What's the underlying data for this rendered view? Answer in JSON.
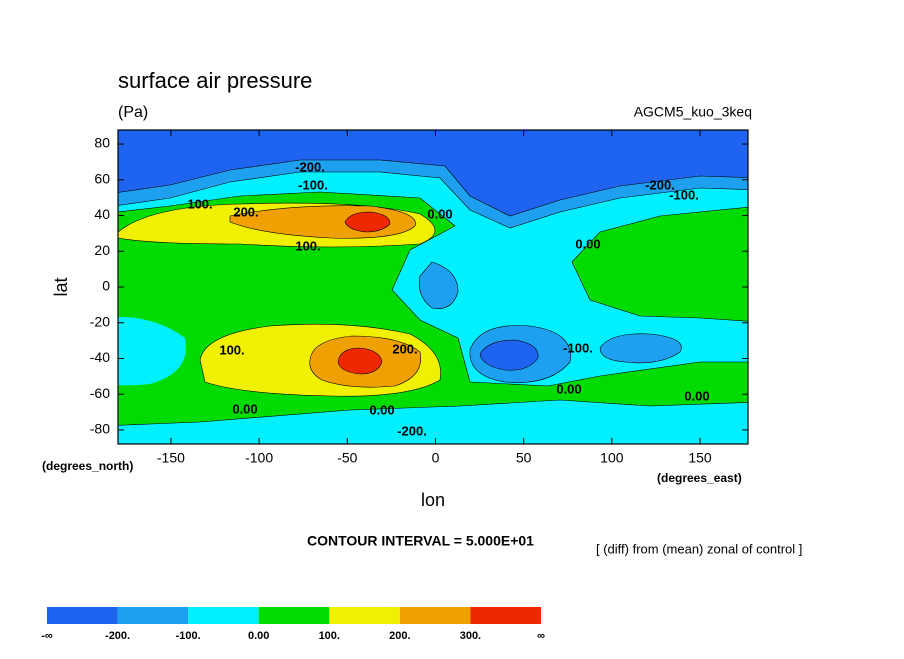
{
  "chart_data": {
    "type": "contour",
    "title": "surface air pressure",
    "units": "(Pa)",
    "experiment": "AGCM5_kuo_3keq",
    "xlabel": "lon",
    "ylabel": "lat",
    "y_units": "(degrees_north)",
    "x_units": "(degrees_east)",
    "contour_interval": "CONTOUR INTERVAL = 5.000E+01",
    "note": "[ (diff) from (mean) zonal of control ]",
    "xlim": [
      -180,
      177.2
    ],
    "ylim": [
      -87.86,
      87.86
    ],
    "xticks": [
      -150,
      -100,
      -50,
      0,
      50,
      100,
      150
    ],
    "yticks": [
      -80,
      -60,
      -40,
      -20,
      0,
      20,
      40,
      60,
      80
    ],
    "contour_labels": [
      "-200.",
      "-100.",
      "200.",
      "100.",
      "100.",
      "0.00",
      "0.00",
      "-200.",
      "-100.",
      "100.",
      "200.",
      "-100.",
      "0.00",
      "0.00",
      "0.00",
      "0.00",
      "-200."
    ],
    "colorbar": {
      "colors": [
        "#1e64f0",
        "#1ea0f0",
        "#00f0ff",
        "#00dc00",
        "#f0f000",
        "#f0a000",
        "#f02800"
      ],
      "bounds": [
        {
          "label": "-∞"
        },
        {
          "value": -200,
          "label": "-200."
        },
        {
          "value": -100,
          "label": "-100."
        },
        {
          "value": 0,
          "label": "0.00"
        },
        {
          "value": 100,
          "label": "100."
        },
        {
          "value": 200,
          "label": "200."
        },
        {
          "value": 300,
          "label": "300."
        },
        {
          "label": "∞"
        }
      ]
    }
  }
}
